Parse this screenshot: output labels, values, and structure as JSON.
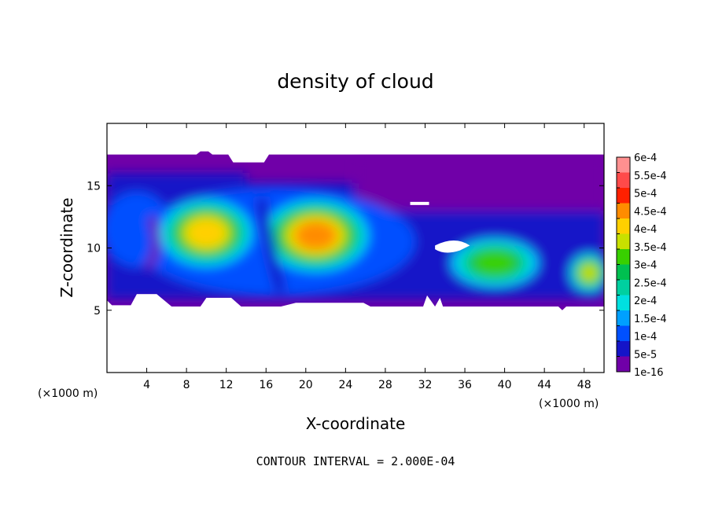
{
  "chart_data": {
    "type": "heatmap",
    "title": "density of cloud",
    "xlabel": "X-coordinate",
    "ylabel": "Z-coordinate",
    "x_units": "(×1000 m)",
    "y_units": "(×1000 m)",
    "xlim": [
      0,
      50
    ],
    "ylim": [
      0,
      20
    ],
    "xticks": [
      4,
      8,
      12,
      16,
      20,
      24,
      28,
      32,
      36,
      40,
      44,
      48
    ],
    "yticks": [
      5,
      10,
      15
    ],
    "legend": "right",
    "colorbar": {
      "labels": [
        "6e-4",
        "5.5e-4",
        "5e-4",
        "4.5e-4",
        "4e-4",
        "3.5e-4",
        "3e-4",
        "2.5e-4",
        "2e-4",
        "1.5e-4",
        "1e-4",
        "5e-5",
        "1e-16"
      ],
      "colors": [
        "#ff9090",
        "#ff4a4a",
        "#ff2000",
        "#ff8c00",
        "#ffd000",
        "#c8e000",
        "#38d000",
        "#00c050",
        "#00d0a0",
        "#00e0e0",
        "#00a0ff",
        "#0050ff",
        "#1414c8",
        "#7000a8"
      ]
    },
    "blobs": [
      {
        "level": 9,
        "x": 10,
        "z": 11.2,
        "rx": 4.8,
        "rz": 2.8
      },
      {
        "level": 10,
        "x": 21,
        "z": 11,
        "rx": 5.5,
        "rz": 3.0
      },
      {
        "level": 7,
        "x": 39,
        "z": 8.8,
        "rx": 4.5,
        "rz": 2.0
      },
      {
        "level": 8,
        "x": 48.5,
        "z": 8.0,
        "rx": 2.0,
        "rz": 1.6
      }
    ],
    "contour_interval": "CONTOUR INTERVAL = 2.000E-04"
  }
}
